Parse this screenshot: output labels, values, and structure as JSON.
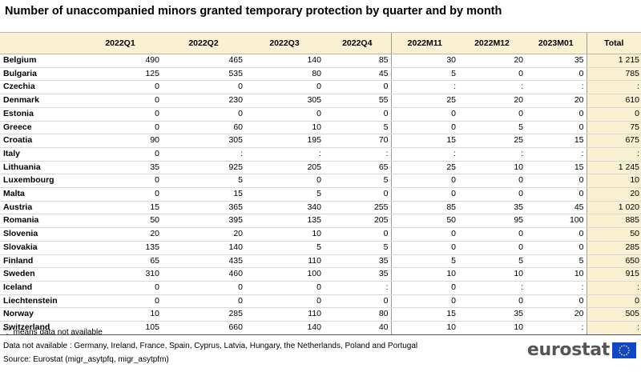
{
  "title": "Number of unaccompanied minors granted temporary protection by quarter and by month",
  "chart_data": {
    "type": "table",
    "columns": [
      "",
      "2022Q1",
      "2022Q2",
      "2022Q3",
      "2022Q4",
      "2022M11",
      "2022M12",
      "2023M01",
      "Total"
    ],
    "rows": [
      {
        "country": "Belgium",
        "values": [
          "490",
          "465",
          "140",
          "85",
          "30",
          "20",
          "35",
          "1 215"
        ]
      },
      {
        "country": "Bulgaria",
        "values": [
          "125",
          "535",
          "80",
          "45",
          "5",
          "0",
          "0",
          "785"
        ]
      },
      {
        "country": "Czechia",
        "values": [
          "0",
          "0",
          "0",
          "0",
          ":",
          ":",
          ":",
          ":"
        ]
      },
      {
        "country": "Denmark",
        "values": [
          "0",
          "230",
          "305",
          "55",
          "25",
          "20",
          "20",
          "610"
        ]
      },
      {
        "country": "Estonia",
        "values": [
          "0",
          "0",
          "0",
          "0",
          "0",
          "0",
          "0",
          "0"
        ]
      },
      {
        "country": "Greece",
        "values": [
          "0",
          "60",
          "10",
          "5",
          "0",
          "5",
          "0",
          "75"
        ]
      },
      {
        "country": "Croatia",
        "values": [
          "90",
          "305",
          "195",
          "70",
          "15",
          "25",
          "15",
          "675"
        ]
      },
      {
        "country": "Italy",
        "values": [
          "0",
          ":",
          ":",
          ":",
          ":",
          ":",
          ":",
          ":"
        ]
      },
      {
        "country": "Lithuania",
        "values": [
          "35",
          "925",
          "205",
          "65",
          "25",
          "10",
          "15",
          "1 245"
        ]
      },
      {
        "country": "Luxembourg",
        "values": [
          "0",
          "5",
          "0",
          "5",
          "0",
          "0",
          "0",
          "10"
        ]
      },
      {
        "country": "Malta",
        "values": [
          "0",
          "15",
          "5",
          "0",
          "0",
          "0",
          "0",
          "20"
        ]
      },
      {
        "country": "Austria",
        "values": [
          "15",
          "365",
          "340",
          "255",
          "85",
          "35",
          "45",
          "1 020"
        ]
      },
      {
        "country": "Romania",
        "values": [
          "50",
          "395",
          "135",
          "205",
          "50",
          "95",
          "100",
          "885"
        ]
      },
      {
        "country": "Slovenia",
        "values": [
          "20",
          "20",
          "10",
          "0",
          "0",
          "0",
          "0",
          "50"
        ]
      },
      {
        "country": "Slovakia",
        "values": [
          "135",
          "140",
          "5",
          "5",
          "0",
          "0",
          "0",
          "285"
        ]
      },
      {
        "country": "Finland",
        "values": [
          "65",
          "435",
          "110",
          "35",
          "5",
          "5",
          "5",
          "650"
        ]
      },
      {
        "country": "Sweden",
        "values": [
          "310",
          "460",
          "100",
          "35",
          "10",
          "10",
          "10",
          "915"
        ]
      },
      {
        "country": "Iceland",
        "values": [
          "0",
          "0",
          "0",
          ":",
          "0",
          ":",
          ":",
          ":"
        ]
      },
      {
        "country": "Liechtenstein",
        "values": [
          "0",
          "0",
          "0",
          "0",
          "0",
          "0",
          "0",
          "0"
        ]
      },
      {
        "country": "Norway",
        "values": [
          "10",
          "285",
          "110",
          "80",
          "15",
          "35",
          "20",
          "505"
        ]
      },
      {
        "country": "Switzerland",
        "values": [
          "105",
          "660",
          "140",
          "40",
          "10",
          "10",
          ":",
          ":"
        ]
      }
    ]
  },
  "notes": [
    "\":\" means data not available",
    "Data not available : Germany, Ireland, France, Spain, Cyprus, Latvia, Hungary, the Netherlands, Poland and Portugal",
    "Source: Eurostat (migr_asytpfq, migr_asytpfm)"
  ],
  "logo": {
    "text": "eurostat",
    "flag_color": "#0e47cb",
    "star_color": "#ffd617"
  },
  "colors": {
    "header_bg": "#faf0d2",
    "total_bg": "#faf0d2"
  }
}
